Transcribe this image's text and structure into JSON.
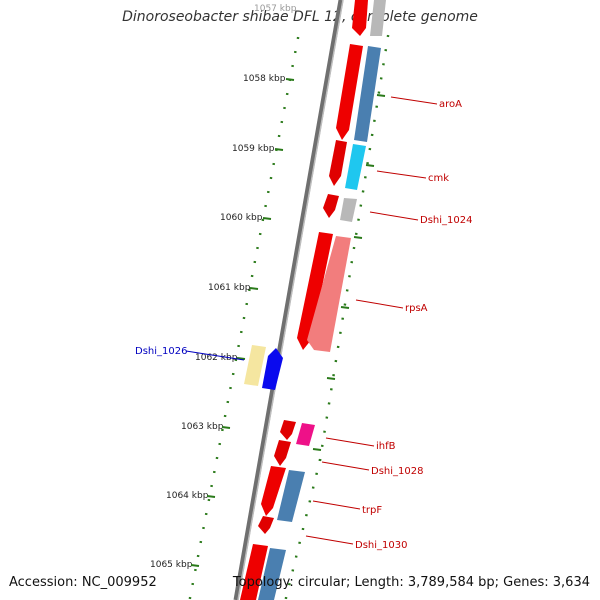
{
  "title": "Dinoroseobacter shibae DFL 12, complete genome",
  "footer": {
    "accession": "Accession: NC_009952",
    "summary": "Topology: circular; Length: 3,789,584 bp; Genes: 3,634"
  },
  "colors": {
    "backbone": "#7a7a7a",
    "tick_green": "#2a7a1a",
    "label_red": "#c00000",
    "label_blue": "#0000c0"
  },
  "kbp_labels": [
    "1057 kbp",
    "1058 kbp",
    "1059 kbp",
    "1060 kbp",
    "1061 kbp",
    "1062 kbp",
    "1063 kbp",
    "1064 kbp",
    "1065 kbp"
  ],
  "gene_labels": [
    {
      "text": "aroA",
      "color": "#c00000"
    },
    {
      "text": "cmk",
      "color": "#c00000"
    },
    {
      "text": "Dshi_1024",
      "color": "#c00000"
    },
    {
      "text": "rpsA",
      "color": "#c00000"
    },
    {
      "text": "Dshi_1026",
      "color": "#0000c0"
    },
    {
      "text": "ihfB",
      "color": "#c00000"
    },
    {
      "text": "Dshi_1028",
      "color": "#c00000"
    },
    {
      "text": "trpF",
      "color": "#c00000"
    },
    {
      "text": "Dshi_1030",
      "color": "#c00000"
    }
  ]
}
